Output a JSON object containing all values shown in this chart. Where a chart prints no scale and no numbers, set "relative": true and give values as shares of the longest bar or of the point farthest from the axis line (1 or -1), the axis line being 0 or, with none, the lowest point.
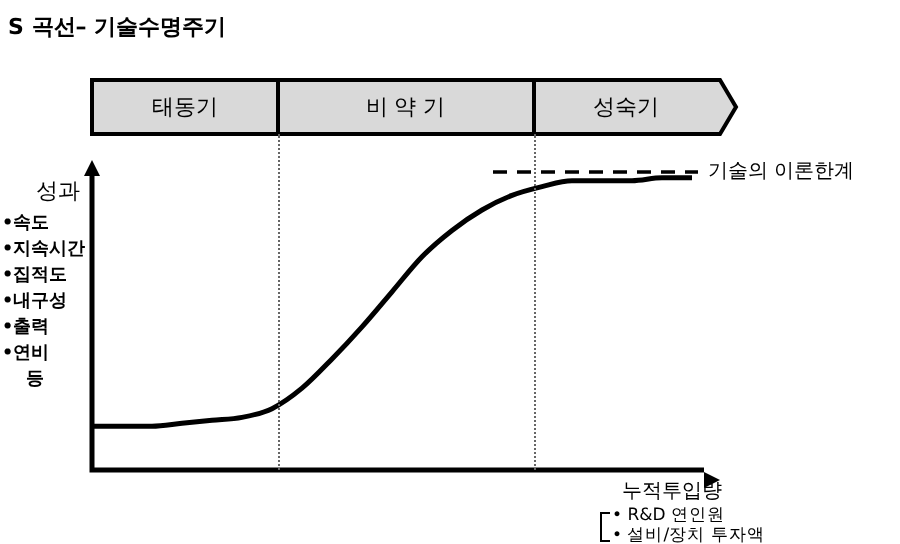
{
  "chart_data": {
    "type": "line",
    "title": "S 곡선– 기술수명주기",
    "ylabel": "성과",
    "xlabel": "누적투입량",
    "relative": true,
    "categories": [
      null,
      null,
      null,
      null,
      null,
      null,
      null,
      null,
      null,
      null,
      null,
      null,
      null,
      null,
      null,
      null,
      null,
      null,
      null,
      null,
      null
    ],
    "series": [
      {
        "color": "#000000",
        "values": [
          0.15,
          0.15,
          0.15,
          0.16,
          0.17,
          0.18,
          0.21,
          0.28,
          0.38,
          0.49,
          0.61,
          0.73,
          0.82,
          0.89,
          0.94,
          0.97,
          0.99,
          0.99,
          0.99,
          1,
          1
        ]
      }
    ],
    "ref_lines": [
      {
        "axis": "y",
        "value": 1.02,
        "label": "기술의 이론한계",
        "line_style": "dashed",
        "color": "#000000"
      }
    ],
    "annotations": [
      "태동기",
      "비 약 기",
      "성숙기",
      "•속도",
      "•지속시간",
      "•집적도",
      "•내구성",
      "•출력",
      "•연비",
      "등",
      "• R&D 연인원",
      "• 설비/장치 투자액"
    ],
    "legend": false,
    "marker": "none",
    "line_style": "solid"
  }
}
